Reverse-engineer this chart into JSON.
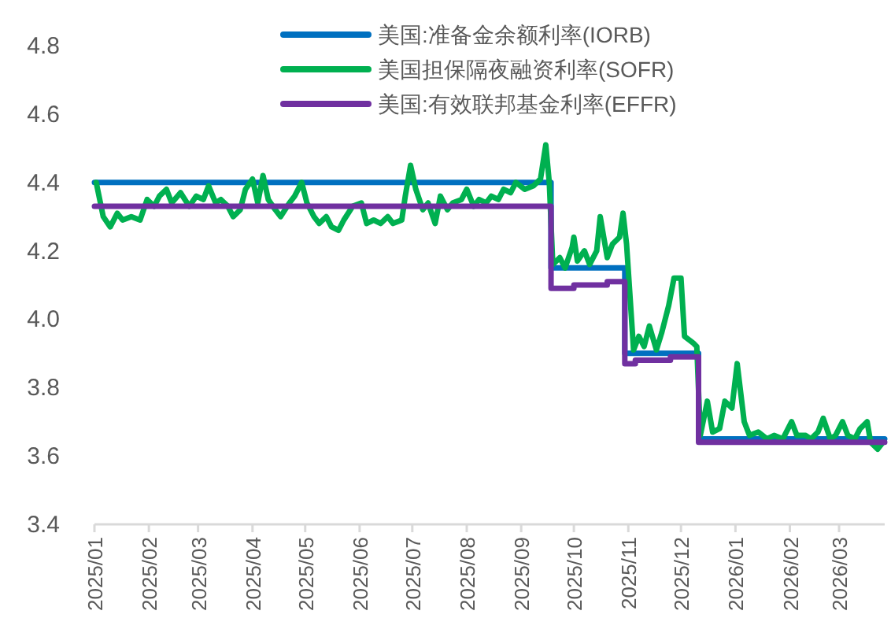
{
  "chart_data": {
    "type": "line",
    "xlim": [
      "2025-01-01",
      "2026-03-27"
    ],
    "ylim": [
      3.4,
      4.8
    ],
    "yticks": [
      3.4,
      3.6,
      3.8,
      {
        "value": 4.0,
        "label": "4.0"
      },
      4.2,
      4.4,
      4.6,
      4.8
    ],
    "xticks": [
      {
        "value": "2025-01-01",
        "label": "2025/01"
      },
      {
        "value": "2025-02-01",
        "label": "2025/02"
      },
      {
        "value": "2025-03-01",
        "label": "2025/03"
      },
      {
        "value": "2025-04-01",
        "label": "2025/04"
      },
      {
        "value": "2025-05-01",
        "label": "2025/05"
      },
      {
        "value": "2025-06-01",
        "label": "2025/06"
      },
      {
        "value": "2025-07-01",
        "label": "2025/07"
      },
      {
        "value": "2025-08-01",
        "label": "2025/08"
      },
      {
        "value": "2025-09-01",
        "label": "2025/09"
      },
      {
        "value": "2025-10-01",
        "label": "2025/10"
      },
      {
        "value": "2025-11-01",
        "label": "2025/11"
      },
      {
        "value": "2025-12-01",
        "label": "2025/12"
      },
      {
        "value": "2026-01-01",
        "label": "2026/01"
      },
      {
        "value": "2026-02-01",
        "label": "2026/02"
      },
      {
        "value": "2026-03-01",
        "label": "2026/03"
      }
    ],
    "legend": "top right",
    "series": [
      {
        "name": "美国:准备金余额利率(IORB)",
        "type": "step",
        "color": "#0070c0",
        "x": [
          "2025-01-01",
          "2025-09-18",
          "2025-10-30",
          "2025-12-11",
          "2026-03-27"
        ],
        "values": [
          4.4,
          4.15,
          3.9,
          3.65,
          3.65
        ]
      },
      {
        "name": "美国担保隔夜融资利率(SOFR)",
        "type": "line",
        "color": "#00b050",
        "x": [
          "2025-01-02",
          "2025-01-06",
          "2025-01-10",
          "2025-01-14",
          "2025-01-17",
          "2025-01-22",
          "2025-01-27",
          "2025-01-31",
          "2025-02-04",
          "2025-02-07",
          "2025-02-11",
          "2025-02-14",
          "2025-02-19",
          "2025-02-24",
          "2025-02-28",
          "2025-03-04",
          "2025-03-07",
          "2025-03-11",
          "2025-03-14",
          "2025-03-18",
          "2025-03-21",
          "2025-03-25",
          "2025-03-28",
          "2025-04-01",
          "2025-04-04",
          "2025-04-07",
          "2025-04-10",
          "2025-04-14",
          "2025-04-17",
          "2025-04-22",
          "2025-04-25",
          "2025-04-29",
          "2025-05-02",
          "2025-05-06",
          "2025-05-09",
          "2025-05-13",
          "2025-05-16",
          "2025-05-20",
          "2025-05-23",
          "2025-05-28",
          "2025-06-02",
          "2025-06-05",
          "2025-06-09",
          "2025-06-13",
          "2025-06-17",
          "2025-06-20",
          "2025-06-25",
          "2025-06-27",
          "2025-06-30",
          "2025-07-03",
          "2025-07-07",
          "2025-07-10",
          "2025-07-14",
          "2025-07-17",
          "2025-07-21",
          "2025-07-24",
          "2025-07-29",
          "2025-08-01",
          "2025-08-05",
          "2025-08-08",
          "2025-08-12",
          "2025-08-15",
          "2025-08-19",
          "2025-08-22",
          "2025-08-26",
          "2025-08-29",
          "2025-09-03",
          "2025-09-08",
          "2025-09-12",
          "2025-09-15",
          "2025-09-17",
          "2025-09-19",
          "2025-09-23",
          "2025-09-26",
          "2025-09-30",
          "2025-10-01",
          "2025-10-03",
          "2025-10-07",
          "2025-10-10",
          "2025-10-14",
          "2025-10-16",
          "2025-10-20",
          "2025-10-23",
          "2025-10-27",
          "2025-10-29",
          "2025-10-31",
          "2025-11-04",
          "2025-11-07",
          "2025-11-10",
          "2025-11-13",
          "2025-11-17",
          "2025-11-20",
          "2025-11-24",
          "2025-11-27",
          "2025-12-01",
          "2025-12-03",
          "2025-12-08",
          "2025-12-10",
          "2025-12-12",
          "2025-12-16",
          "2025-12-19",
          "2025-12-23",
          "2025-12-26",
          "2025-12-30",
          "2026-01-02",
          "2026-01-06",
          "2026-01-09",
          "2026-01-14",
          "2026-01-19",
          "2026-01-23",
          "2026-01-28",
          "2026-02-02",
          "2026-02-05",
          "2026-02-10",
          "2026-02-13",
          "2026-02-17",
          "2026-02-20",
          "2026-02-24",
          "2026-02-27",
          "2026-03-03",
          "2026-03-06",
          "2026-03-10",
          "2026-03-13",
          "2026-03-17",
          "2026-03-19",
          "2026-03-23",
          "2026-03-26"
        ],
        "values": [
          4.4,
          4.3,
          4.27,
          4.31,
          4.29,
          4.3,
          4.29,
          4.35,
          4.33,
          4.36,
          4.38,
          4.34,
          4.37,
          4.33,
          4.36,
          4.35,
          4.39,
          4.34,
          4.35,
          4.33,
          4.3,
          4.32,
          4.38,
          4.41,
          4.34,
          4.42,
          4.35,
          4.32,
          4.3,
          4.34,
          4.36,
          4.4,
          4.34,
          4.3,
          4.28,
          4.3,
          4.27,
          4.26,
          4.29,
          4.33,
          4.34,
          4.28,
          4.29,
          4.28,
          4.3,
          4.28,
          4.29,
          4.36,
          4.45,
          4.38,
          4.32,
          4.34,
          4.28,
          4.36,
          4.32,
          4.34,
          4.35,
          4.38,
          4.33,
          4.35,
          4.34,
          4.36,
          4.35,
          4.38,
          4.37,
          4.4,
          4.38,
          4.39,
          4.41,
          4.51,
          4.4,
          4.16,
          4.18,
          4.15,
          4.21,
          4.24,
          4.17,
          4.2,
          4.16,
          4.2,
          4.3,
          4.18,
          4.22,
          4.24,
          4.31,
          4.22,
          3.91,
          3.95,
          3.92,
          3.98,
          3.91,
          3.96,
          4.04,
          4.12,
          4.12,
          3.95,
          3.93,
          3.92,
          3.66,
          3.76,
          3.67,
          3.68,
          3.76,
          3.74,
          3.87,
          3.7,
          3.66,
          3.67,
          3.65,
          3.66,
          3.65,
          3.7,
          3.66,
          3.66,
          3.65,
          3.67,
          3.71,
          3.65,
          3.66,
          3.7,
          3.66,
          3.65,
          3.68,
          3.7,
          3.64,
          3.62,
          3.64
        ]
      },
      {
        "name": "美国:有效联邦基金利率(EFFR)",
        "type": "step",
        "color": "#7030a0",
        "x": [
          "2025-01-01",
          "2025-09-18",
          "2025-10-01",
          "2025-10-20",
          "2025-10-30",
          "2025-11-05",
          "2025-11-25",
          "2025-12-11",
          "2026-03-27"
        ],
        "values": [
          4.33,
          4.09,
          4.1,
          4.11,
          3.87,
          3.88,
          3.89,
          3.64,
          3.64
        ]
      }
    ]
  }
}
